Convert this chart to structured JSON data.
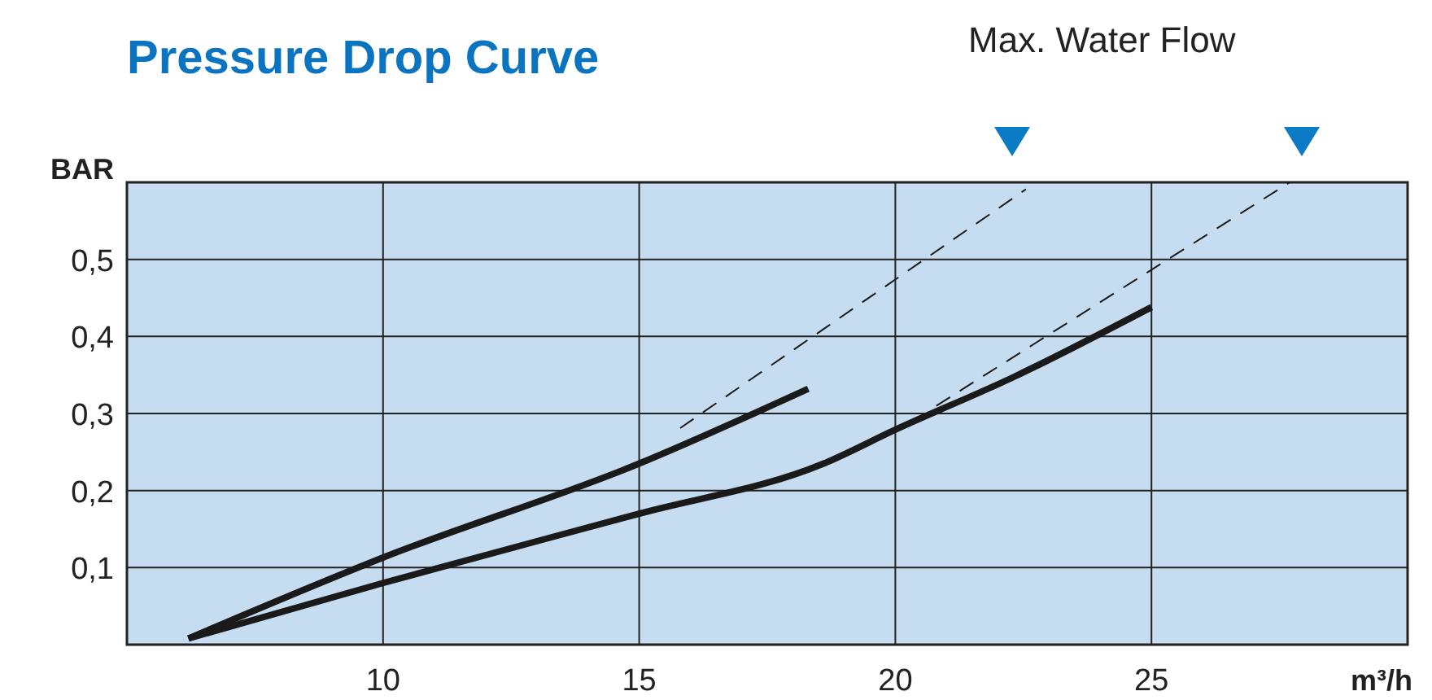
{
  "chart_data": {
    "type": "line",
    "title": "Pressure Drop Curve",
    "xlabel": "m³/h",
    "ylabel": "BAR",
    "annotations": [
      "Max. Water Flow"
    ],
    "xlim": [
      5,
      30
    ],
    "xticks": [
      10,
      15,
      20,
      25
    ],
    "ylim": [
      0,
      0.6
    ],
    "yticks": [
      {
        "value": 0.1,
        "label": "0,1"
      },
      {
        "value": 0.2,
        "label": "0,2"
      },
      {
        "value": 0.3,
        "label": "0,3"
      },
      {
        "value": 0.4,
        "label": "0,4"
      },
      {
        "value": 0.5,
        "label": "0,5"
      }
    ],
    "grid": true,
    "marker": "none",
    "series": [
      {
        "color": "#1a1a1a",
        "line_style": "solid",
        "x": [
          6.2,
          10,
          15,
          18.3
        ],
        "values": [
          0.008,
          0.113,
          0.235,
          0.332
        ]
      },
      {
        "color": "#1a1a1a",
        "line_style": "solid",
        "x": [
          6.2,
          10,
          15,
          18.6,
          20,
          22.3,
          25
        ],
        "values": [
          0.008,
          0.08,
          0.17,
          0.235,
          0.279,
          0.347,
          0.438
        ]
      },
      {
        "color": "#1a1a1a",
        "line_style": "dashed",
        "x": [
          15.8,
          22.55
        ],
        "values": [
          0.281,
          0.591
        ]
      },
      {
        "color": "#1a1a1a",
        "line_style": "dashed",
        "x": [
          20.8,
          27.7
        ],
        "values": [
          0.31,
          0.6
        ]
      }
    ]
  }
}
